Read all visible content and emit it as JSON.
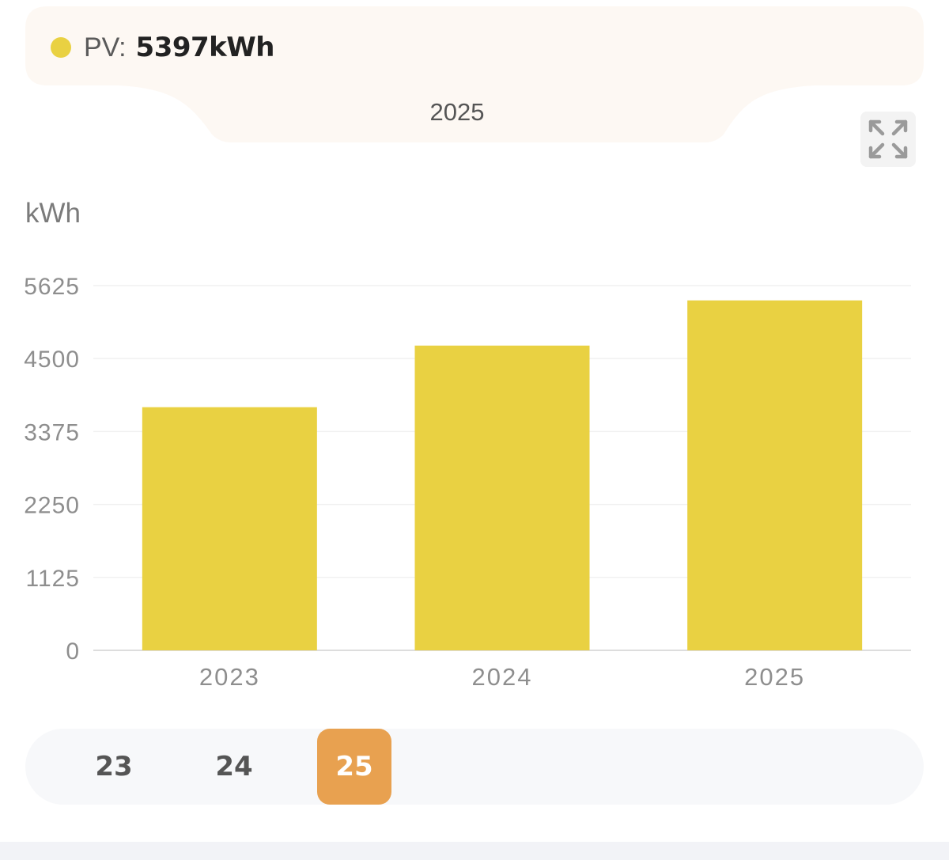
{
  "legend": {
    "label": "PV:",
    "value": "5397kWh",
    "color": "#E9D142"
  },
  "tooltip": {
    "year": "2025"
  },
  "toolbar": {
    "expand_icon": "expand-icon"
  },
  "chart_data": {
    "type": "bar",
    "ylabel": "kWh",
    "categories": [
      "2023",
      "2024",
      "2025"
    ],
    "series": [
      {
        "name": "PV",
        "values": [
          3750,
          4700,
          5397
        ],
        "color": "#E9D142"
      }
    ],
    "ylim": [
      0,
      5625
    ],
    "yticks": [
      0,
      1125,
      2250,
      3375,
      4500,
      5625
    ],
    "grid": true
  },
  "year_selector": {
    "items": [
      {
        "label": "23",
        "active": false
      },
      {
        "label": "24",
        "active": false
      },
      {
        "label": "25",
        "active": true
      }
    ],
    "active_color": "#E8A150"
  }
}
